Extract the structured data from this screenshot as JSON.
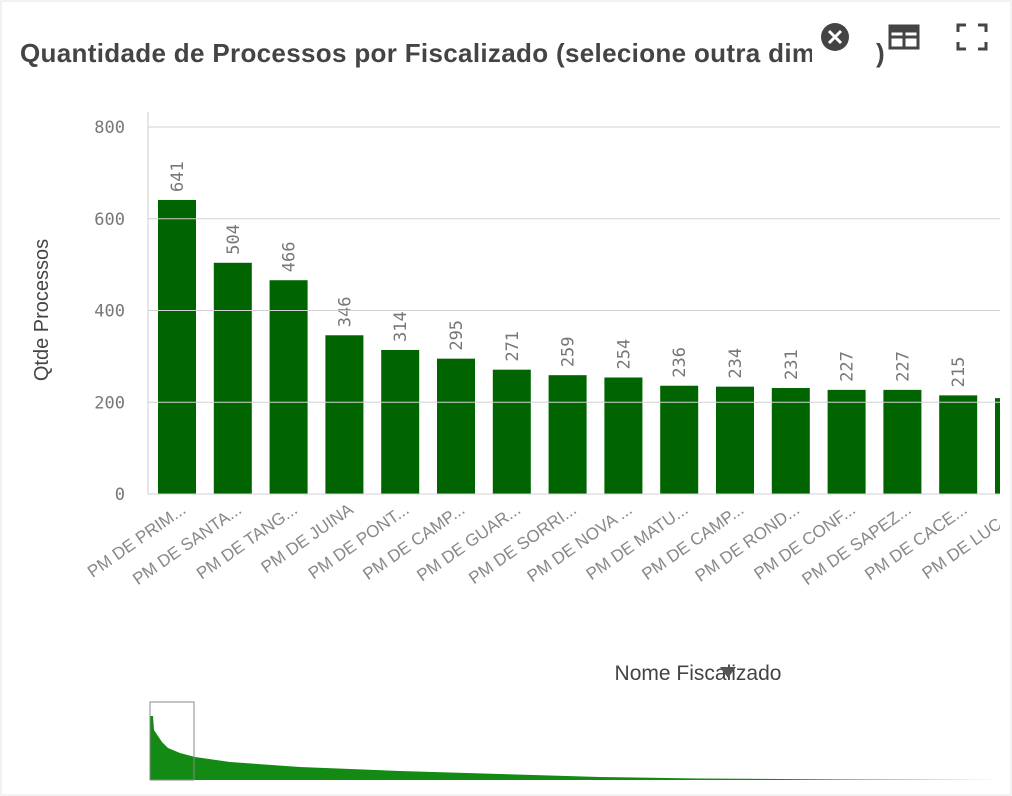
{
  "chart_data": {
    "type": "bar",
    "title": "Quantidade de Processos por Fiscalizado (selecione outra dim",
    "x_label": "Nome Fiscalizado",
    "y_label": "Qtde Processos",
    "categories": [
      "PM DE PRIM...",
      "PM DE SANTA...",
      "PM DE TANG...",
      "PM DE JUINA",
      "PM DE PONT...",
      "PM DE CAMP...",
      "PM DE GUAR...",
      "PM DE SORRI...",
      "PM DE NOVA ...",
      "PM DE MATU...",
      "PM DE CAMP...",
      "PM DE ROND...",
      "PM DE CONF...",
      "PM DE SAPEZ...",
      "PM DE CACE...",
      "PM DE LUCA..."
    ],
    "values": [
      641,
      504,
      466,
      346,
      314,
      295,
      271,
      259,
      254,
      236,
      234,
      231,
      227,
      227,
      215,
      209
    ],
    "color": "#006400",
    "ylim": [
      0,
      800
    ],
    "yticks": [
      0,
      200,
      400,
      600,
      800
    ],
    "grid": true
  }
}
